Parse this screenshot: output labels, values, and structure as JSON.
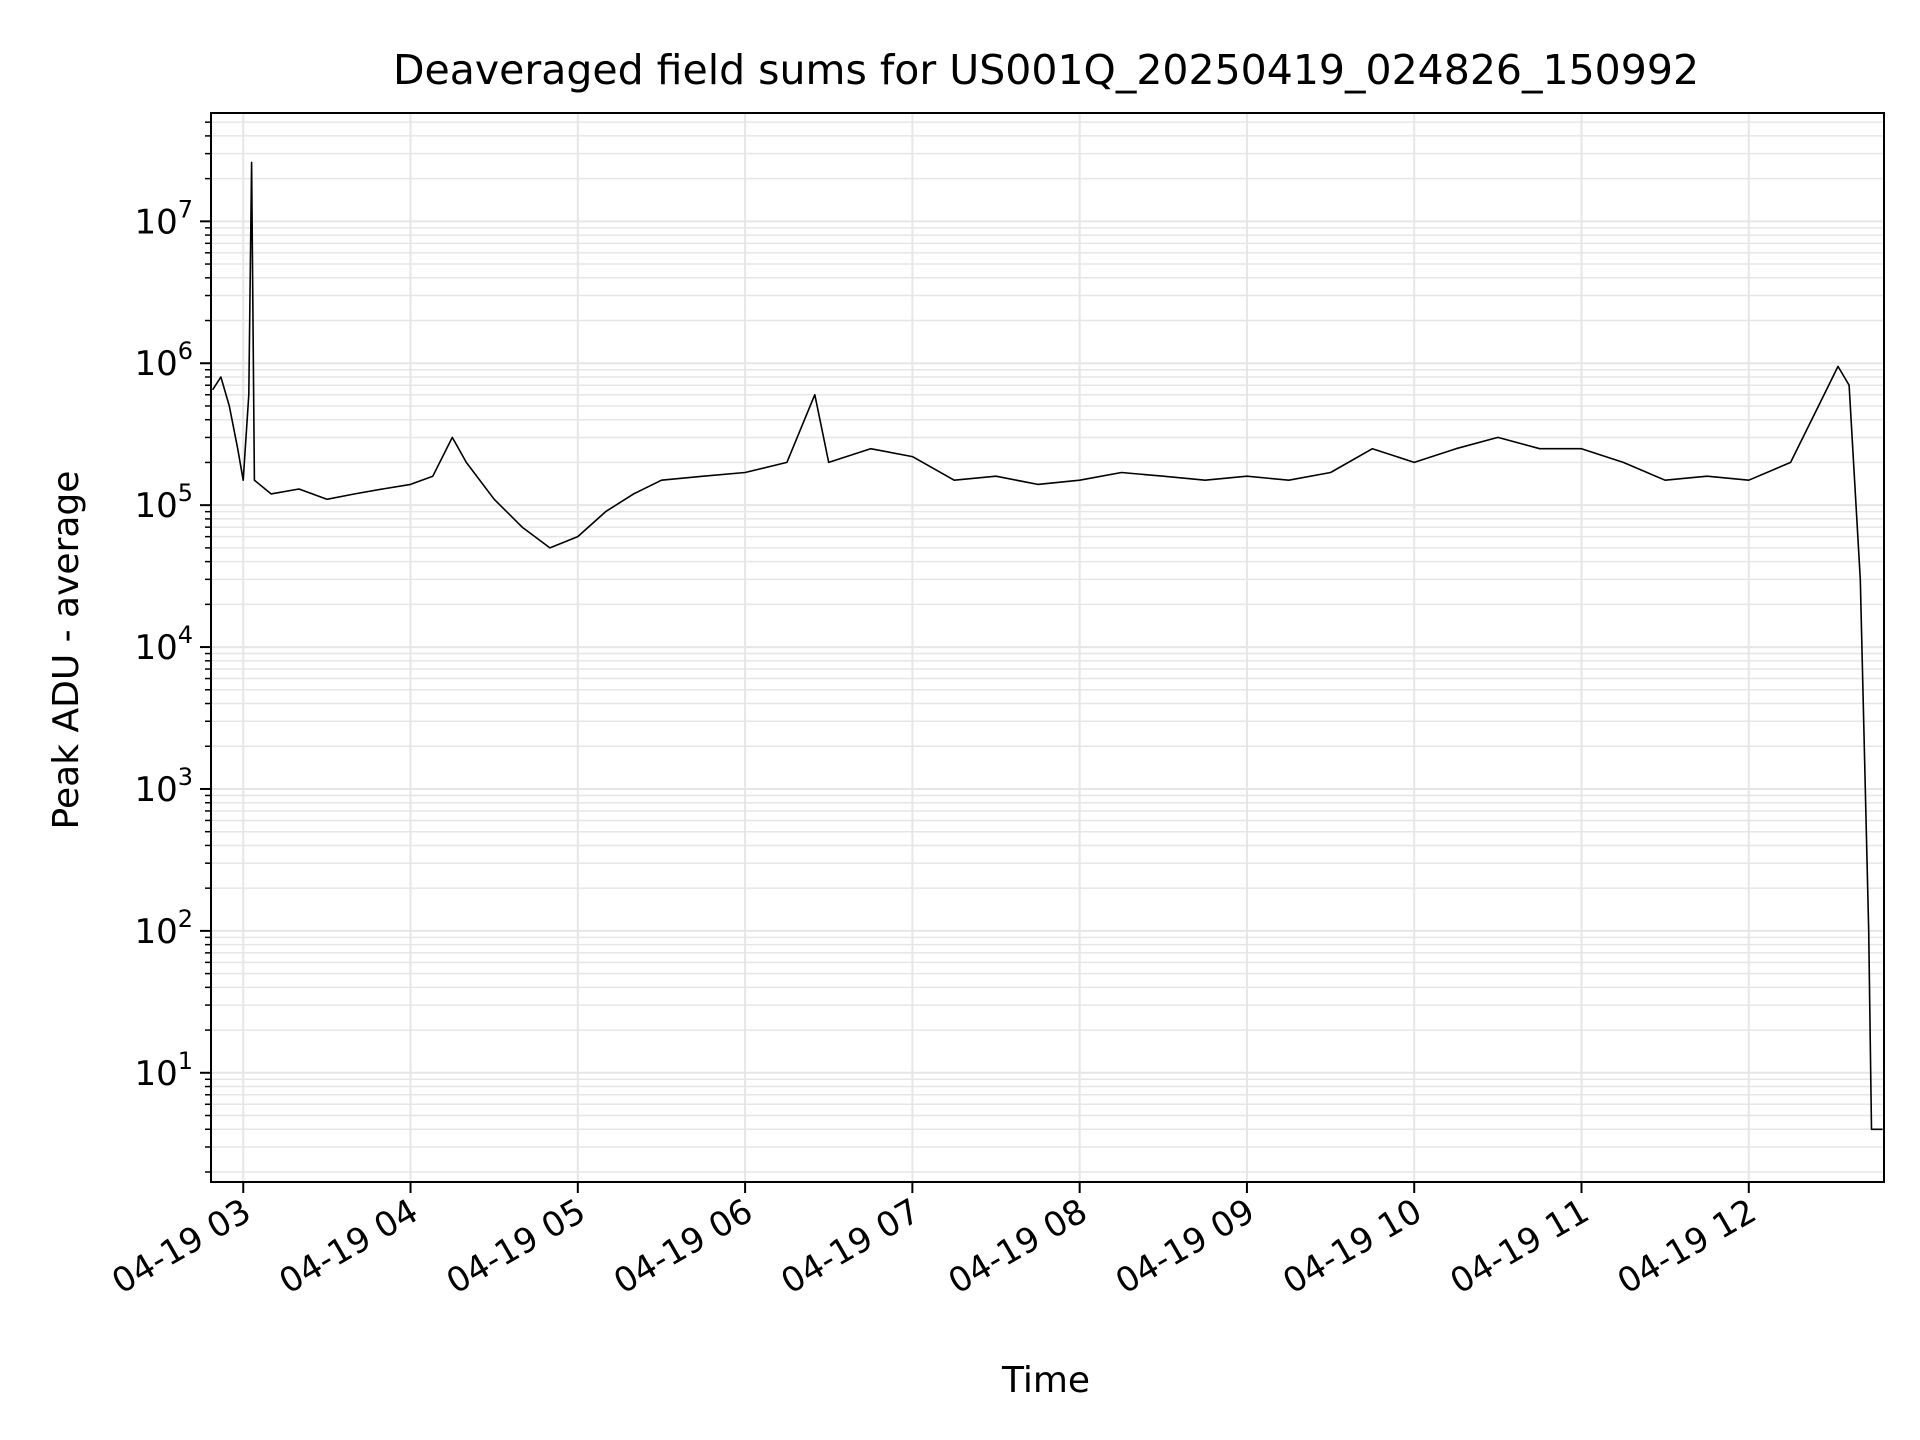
{
  "chart_data": {
    "type": "line",
    "title": "Deaveraged field sums for US001Q_20250419_024826_150992",
    "xlabel": "Time",
    "ylabel": "Peak ADU - average",
    "yscale": "log",
    "ylim": [
      1.7,
      58000000
    ],
    "xlim": [
      "2025-04-19 02:48:26",
      "2025-04-19 12:48:30"
    ],
    "grid": true,
    "legend": "none",
    "line_color": "#000000",
    "grid_color": "#e6e6e6",
    "x_ticks": [
      {
        "time": "2025-04-19 03:00",
        "label": "04-19 03"
      },
      {
        "time": "2025-04-19 04:00",
        "label": "04-19 04"
      },
      {
        "time": "2025-04-19 05:00",
        "label": "04-19 05"
      },
      {
        "time": "2025-04-19 06:00",
        "label": "04-19 06"
      },
      {
        "time": "2025-04-19 07:00",
        "label": "04-19 07"
      },
      {
        "time": "2025-04-19 08:00",
        "label": "04-19 08"
      },
      {
        "time": "2025-04-19 09:00",
        "label": "04-19 09"
      },
      {
        "time": "2025-04-19 10:00",
        "label": "04-19 10"
      },
      {
        "time": "2025-04-19 11:00",
        "label": "04-19 11"
      },
      {
        "time": "2025-04-19 12:00",
        "label": "04-19 12"
      }
    ],
    "y_ticks": [
      {
        "value": 10,
        "base": "10",
        "exp": "1"
      },
      {
        "value": 100,
        "base": "10",
        "exp": "2"
      },
      {
        "value": 1000,
        "base": "10",
        "exp": "3"
      },
      {
        "value": 10000,
        "base": "10",
        "exp": "4"
      },
      {
        "value": 100000,
        "base": "10",
        "exp": "5"
      },
      {
        "value": 1000000,
        "base": "10",
        "exp": "6"
      },
      {
        "value": 10000000,
        "base": "10",
        "exp": "7"
      }
    ],
    "series": [
      {
        "points": [
          [
            "2025-04-19 02:49",
            650000
          ],
          [
            "2025-04-19 02:52",
            800000
          ],
          [
            "2025-04-19 02:55",
            500000
          ],
          [
            "2025-04-19 02:58",
            250000
          ],
          [
            "2025-04-19 03:00",
            150000
          ],
          [
            "2025-04-19 03:02",
            600000
          ],
          [
            "2025-04-19 03:03",
            26000000
          ],
          [
            "2025-04-19 03:04",
            150000
          ],
          [
            "2025-04-19 03:10",
            120000
          ],
          [
            "2025-04-19 03:20",
            130000
          ],
          [
            "2025-04-19 03:30",
            110000
          ],
          [
            "2025-04-19 03:40",
            120000
          ],
          [
            "2025-04-19 03:50",
            130000
          ],
          [
            "2025-04-19 04:00",
            140000
          ],
          [
            "2025-04-19 04:08",
            160000
          ],
          [
            "2025-04-19 04:15",
            300000
          ],
          [
            "2025-04-19 04:20",
            200000
          ],
          [
            "2025-04-19 04:30",
            110000
          ],
          [
            "2025-04-19 04:40",
            70000
          ],
          [
            "2025-04-19 04:50",
            50000
          ],
          [
            "2025-04-19 05:00",
            60000
          ],
          [
            "2025-04-19 05:10",
            90000
          ],
          [
            "2025-04-19 05:20",
            120000
          ],
          [
            "2025-04-19 05:30",
            150000
          ],
          [
            "2025-04-19 05:45",
            160000
          ],
          [
            "2025-04-19 06:00",
            170000
          ],
          [
            "2025-04-19 06:15",
            200000
          ],
          [
            "2025-04-19 06:25",
            600000
          ],
          [
            "2025-04-19 06:30",
            200000
          ],
          [
            "2025-04-19 06:45",
            250000
          ],
          [
            "2025-04-19 07:00",
            220000
          ],
          [
            "2025-04-19 07:15",
            150000
          ],
          [
            "2025-04-19 07:30",
            160000
          ],
          [
            "2025-04-19 07:45",
            140000
          ],
          [
            "2025-04-19 08:00",
            150000
          ],
          [
            "2025-04-19 08:15",
            170000
          ],
          [
            "2025-04-19 08:30",
            160000
          ],
          [
            "2025-04-19 08:45",
            150000
          ],
          [
            "2025-04-19 09:00",
            160000
          ],
          [
            "2025-04-19 09:15",
            150000
          ],
          [
            "2025-04-19 09:30",
            170000
          ],
          [
            "2025-04-19 09:45",
            250000
          ],
          [
            "2025-04-19 10:00",
            200000
          ],
          [
            "2025-04-19 10:15",
            250000
          ],
          [
            "2025-04-19 10:30",
            300000
          ],
          [
            "2025-04-19 10:45",
            250000
          ],
          [
            "2025-04-19 11:00",
            250000
          ],
          [
            "2025-04-19 11:15",
            200000
          ],
          [
            "2025-04-19 11:30",
            150000
          ],
          [
            "2025-04-19 11:45",
            160000
          ],
          [
            "2025-04-19 12:00",
            150000
          ],
          [
            "2025-04-19 12:15",
            200000
          ],
          [
            "2025-04-19 12:25",
            500000
          ],
          [
            "2025-04-19 12:32",
            950000
          ],
          [
            "2025-04-19 12:36",
            700000
          ],
          [
            "2025-04-19 12:40",
            30000
          ],
          [
            "2025-04-19 12:43",
            100
          ],
          [
            "2025-04-19 12:44",
            4
          ],
          [
            "2025-04-19 12:48",
            4
          ]
        ]
      }
    ]
  }
}
